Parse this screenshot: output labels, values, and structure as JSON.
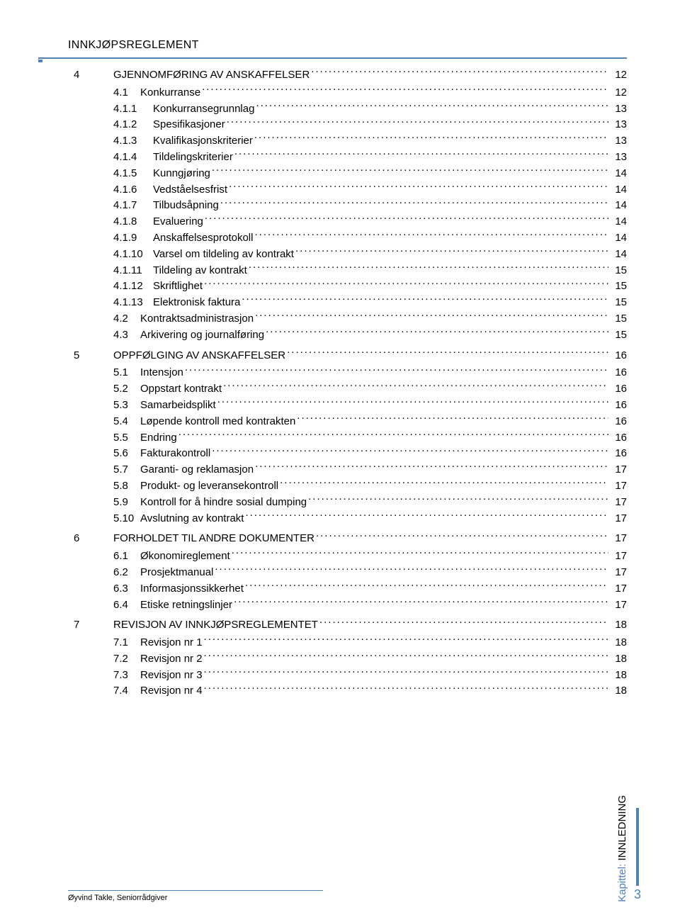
{
  "header": {
    "title": "INNKJØPSREGLEMENT"
  },
  "toc": [
    {
      "level": 0,
      "num": "4",
      "label": "GJENNOMFØRING AV ANSKAFFELSER",
      "page": "12"
    },
    {
      "level": 1,
      "num": "4.1",
      "label": "Konkurranse",
      "page": "12"
    },
    {
      "level": 2,
      "num": "4.1.1",
      "label": "Konkurransegrunnlag",
      "page": "13"
    },
    {
      "level": 2,
      "num": "4.1.2",
      "label": "Spesifikasjoner",
      "page": "13"
    },
    {
      "level": 2,
      "num": "4.1.3",
      "label": "Kvalifikasjonskriterier",
      "page": "13"
    },
    {
      "level": 2,
      "num": "4.1.4",
      "label": "Tildelingskriterier",
      "page": "13"
    },
    {
      "level": 2,
      "num": "4.1.5",
      "label": "Kunngjøring",
      "page": "14"
    },
    {
      "level": 2,
      "num": "4.1.6",
      "label": "Vedståelsesfrist",
      "page": "14"
    },
    {
      "level": 2,
      "num": "4.1.7",
      "label": "Tilbudsåpning",
      "page": "14"
    },
    {
      "level": 2,
      "num": "4.1.8",
      "label": "Evaluering",
      "page": "14"
    },
    {
      "level": 2,
      "num": "4.1.9",
      "label": "Anskaffelsesprotokoll",
      "page": "14"
    },
    {
      "level": 2,
      "num": "4.1.10",
      "label": "Varsel om tildeling av kontrakt",
      "page": "14"
    },
    {
      "level": 2,
      "num": "4.1.11",
      "label": "Tildeling av kontrakt",
      "page": "15"
    },
    {
      "level": 2,
      "num": "4.1.12",
      "label": "Skriftlighet",
      "page": "15"
    },
    {
      "level": 2,
      "num": "4.1.13",
      "label": "Elektronisk faktura",
      "page": "15"
    },
    {
      "level": 1,
      "num": "4.2",
      "label": "Kontraktsadministrasjon",
      "page": "15"
    },
    {
      "level": 1,
      "num": "4.3",
      "label": "Arkivering og journalføring",
      "page": "15"
    },
    {
      "level": 0,
      "num": "5",
      "label": "OPPFØLGING AV ANSKAFFELSER",
      "page": "16"
    },
    {
      "level": 1,
      "num": "5.1",
      "label": "Intensjon",
      "page": "16"
    },
    {
      "level": 1,
      "num": "5.2",
      "label": "Oppstart kontrakt",
      "page": "16"
    },
    {
      "level": 1,
      "num": "5.3",
      "label": "Samarbeidsplikt",
      "page": "16"
    },
    {
      "level": 1,
      "num": "5.4",
      "label": "Løpende kontroll med kontrakten",
      "page": "16"
    },
    {
      "level": 1,
      "num": "5.5",
      "label": "Endring",
      "page": "16"
    },
    {
      "level": 1,
      "num": "5.6",
      "label": "Fakturakontroll",
      "page": "16"
    },
    {
      "level": 1,
      "num": "5.7",
      "label": "Garanti- og reklamasjon",
      "page": "17"
    },
    {
      "level": 1,
      "num": "5.8",
      "label": "Produkt- og leveransekontroll",
      "page": "17"
    },
    {
      "level": 1,
      "num": "5.9",
      "label": "Kontroll for å hindre sosial dumping",
      "page": "17"
    },
    {
      "level": 1,
      "num": "5.10",
      "label": "Avslutning av kontrakt",
      "page": "17"
    },
    {
      "level": 0,
      "num": "6",
      "label": "FORHOLDET TIL ANDRE DOKUMENTER",
      "page": "17"
    },
    {
      "level": 1,
      "num": "6.1",
      "label": "Økonomireglement",
      "page": "17"
    },
    {
      "level": 1,
      "num": "6.2",
      "label": "Prosjektmanual",
      "page": "17"
    },
    {
      "level": 1,
      "num": "6.3",
      "label": "Informasjonssikkerhet",
      "page": "17"
    },
    {
      "level": 1,
      "num": "6.4",
      "label": "Etiske retningslinjer",
      "page": "17"
    },
    {
      "level": 0,
      "num": "7",
      "label": "REVISJON AV INNKJØPSREGLEMENTET",
      "page": "18"
    },
    {
      "level": 1,
      "num": "7.1",
      "label": "Revisjon nr 1",
      "page": "18"
    },
    {
      "level": 1,
      "num": "7.2",
      "label": "Revisjon nr 2",
      "page": "18"
    },
    {
      "level": 1,
      "num": "7.3",
      "label": "Revisjon nr 3",
      "page": "18"
    },
    {
      "level": 1,
      "num": "7.4",
      "label": "Revisjon nr 4",
      "page": "18"
    }
  ],
  "footer": {
    "author": "Øyvind Takle, Seniorrådgiver",
    "sideLabelPrefix": "Kapittel:",
    "sideLabelValue": "INNLEDNING",
    "pageNumber": "3"
  },
  "style": {
    "accent": "#4f81bd",
    "text": "#000000",
    "background": "#ffffff",
    "fontSizeBody": 15,
    "fontSizeHeader": 16,
    "fontSizeFooter": 11,
    "pageWidth": 960,
    "pageHeight": 1301
  }
}
